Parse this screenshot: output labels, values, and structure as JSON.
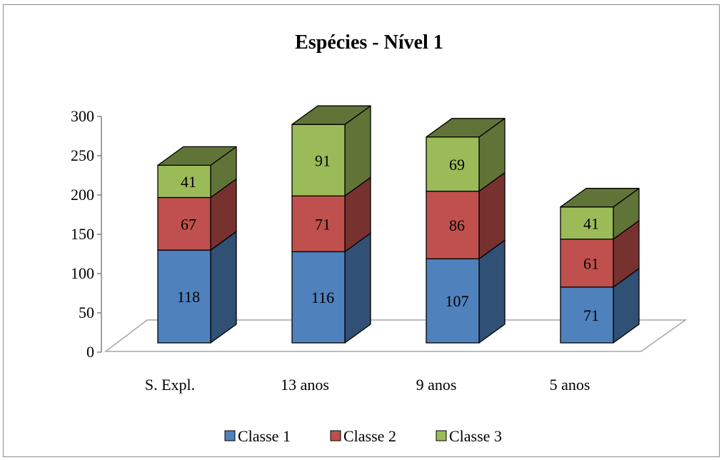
{
  "chart_data": {
    "type": "bar",
    "stacked": true,
    "style": "3d",
    "title": "Espécies - Nível 1",
    "xlabel": "",
    "ylabel": "",
    "categories": [
      "S. Expl.",
      "13 anos",
      "9 anos",
      "5 anos"
    ],
    "series": [
      {
        "name": "Classe 1",
        "values": [
          118,
          116,
          107,
          71
        ],
        "color": "#4f81bd"
      },
      {
        "name": "Classe 2",
        "values": [
          67,
          71,
          86,
          61
        ],
        "color": "#c0504d"
      },
      {
        "name": "Classe 3",
        "values": [
          41,
          91,
          69,
          41
        ],
        "color": "#9bbb59"
      }
    ],
    "ylim": [
      0,
      300
    ],
    "yticks": [
      "0",
      "50",
      "100",
      "150",
      "200",
      "250",
      "300"
    ],
    "grid": false,
    "legend_position": "bottom"
  }
}
